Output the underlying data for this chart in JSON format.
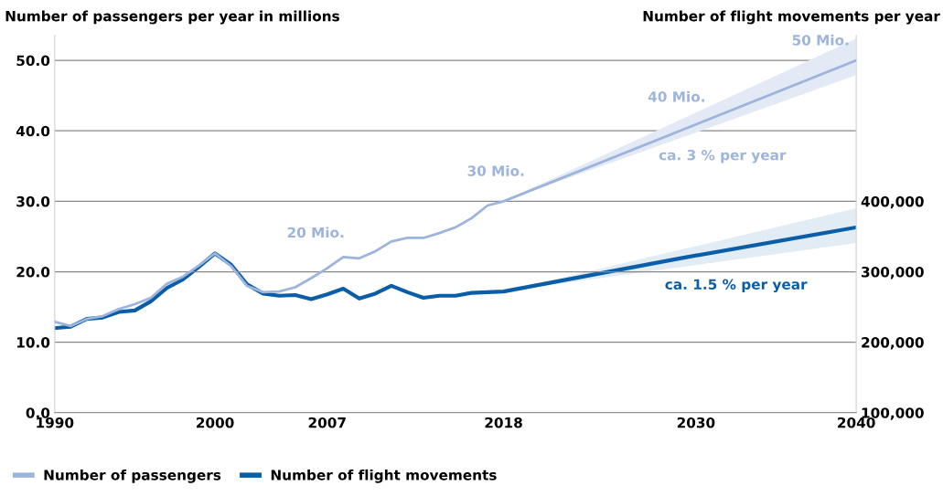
{
  "chart_data": {
    "type": "line",
    "ylabel": "Number of passengers per year in millions",
    "y2label": "Number of flight movements per year",
    "xlim": [
      1990,
      2040
    ],
    "xticks": [
      1990,
      2000,
      2007,
      2018,
      2030,
      2040
    ],
    "ylim": [
      0,
      53.5
    ],
    "yticks": [
      {
        "value": 0,
        "label": "0.0"
      },
      {
        "value": 10,
        "label": "10.0"
      },
      {
        "value": 20,
        "label": "20.0"
      },
      {
        "value": 30,
        "label": "30.0"
      },
      {
        "value": 40,
        "label": "40.0"
      },
      {
        "value": 50,
        "label": "50.0"
      }
    ],
    "y2lim": [
      100000,
      635000
    ],
    "y2ticks": [
      {
        "value": 100000,
        "label": "100,000"
      },
      {
        "value": 200000,
        "label": "200,000"
      },
      {
        "value": 300000,
        "label": "300,000"
      },
      {
        "value": 400000,
        "label": "400,000"
      }
    ],
    "grid": "y",
    "legend": "bottom left",
    "line_style": "solid",
    "marker": "none",
    "series": [
      {
        "name": "Number of passengers",
        "color": "#9db4dc",
        "x": [
          1990,
          1991,
          1992,
          1993,
          1994,
          1995,
          1996,
          1997,
          1998,
          1999,
          2000,
          2001,
          2002,
          2003,
          2004,
          2005,
          2006,
          2007,
          2008,
          2009,
          2010,
          2011,
          2012,
          2013,
          2014,
          2015,
          2016,
          2017,
          2018,
          2040
        ],
        "values": [
          12.9,
          12.3,
          13.3,
          13.7,
          14.7,
          15.4,
          16.3,
          18.3,
          19.3,
          20.9,
          22.6,
          20.8,
          18.0,
          17.1,
          17.2,
          17.8,
          19.1,
          20.5,
          22.1,
          21.9,
          22.9,
          24.3,
          24.8,
          24.8,
          25.5,
          26.3,
          27.6,
          29.4,
          30.0,
          50.0
        ],
        "lower": [
          null,
          null,
          null,
          null,
          null,
          null,
          null,
          null,
          null,
          null,
          null,
          null,
          null,
          null,
          null,
          null,
          null,
          null,
          null,
          null,
          null,
          null,
          null,
          null,
          null,
          null,
          null,
          null,
          30.0,
          47.9
        ],
        "upper": [
          null,
          null,
          null,
          null,
          null,
          null,
          null,
          null,
          null,
          null,
          null,
          null,
          null,
          null,
          null,
          null,
          null,
          null,
          null,
          null,
          null,
          null,
          null,
          null,
          null,
          null,
          null,
          null,
          30.0,
          53.1
        ]
      },
      {
        "name": "Number of flight movements",
        "color": "#0a5ea8",
        "axis": "y2",
        "x": [
          1990,
          1991,
          1992,
          1993,
          1994,
          1995,
          1996,
          1997,
          1998,
          1999,
          2000,
          2001,
          2002,
          2003,
          2004,
          2005,
          2006,
          2007,
          2008,
          2009,
          2010,
          2011,
          2012,
          2013,
          2014,
          2015,
          2016,
          2017,
          2018,
          2029,
          2040
        ],
        "values": [
          220000,
          222000,
          233000,
          235000,
          243000,
          245000,
          258000,
          277000,
          289000,
          307000,
          326000,
          310000,
          282000,
          269000,
          266000,
          267000,
          261000,
          268000,
          276000,
          262000,
          269000,
          280000,
          271000,
          263000,
          266000,
          266000,
          270000,
          271000,
          272000,
          319000,
          363000
        ],
        "lower": [
          null,
          null,
          null,
          null,
          null,
          null,
          null,
          null,
          null,
          null,
          null,
          null,
          null,
          null,
          null,
          null,
          null,
          null,
          null,
          null,
          null,
          null,
          null,
          null,
          null,
          null,
          null,
          null,
          272000,
          306500,
          341000
        ],
        "upper": [
          null,
          null,
          null,
          null,
          null,
          null,
          null,
          null,
          null,
          null,
          null,
          null,
          null,
          null,
          null,
          null,
          null,
          null,
          null,
          null,
          null,
          null,
          null,
          null,
          null,
          null,
          null,
          null,
          272000,
          331000,
          390000
        ]
      }
    ],
    "annotations": [
      {
        "text": "20 Mio.",
        "x": 2006.6,
        "y": 20.0
      },
      {
        "text": "30 Mio.",
        "x": 2018,
        "y": 30.0
      },
      "40 Mio.",
      {
        "text": "50 Mio.",
        "x": 2040,
        "y": 50.0
      },
      "ca. 3 % per year",
      "ca. 1.5 % per year"
    ]
  }
}
